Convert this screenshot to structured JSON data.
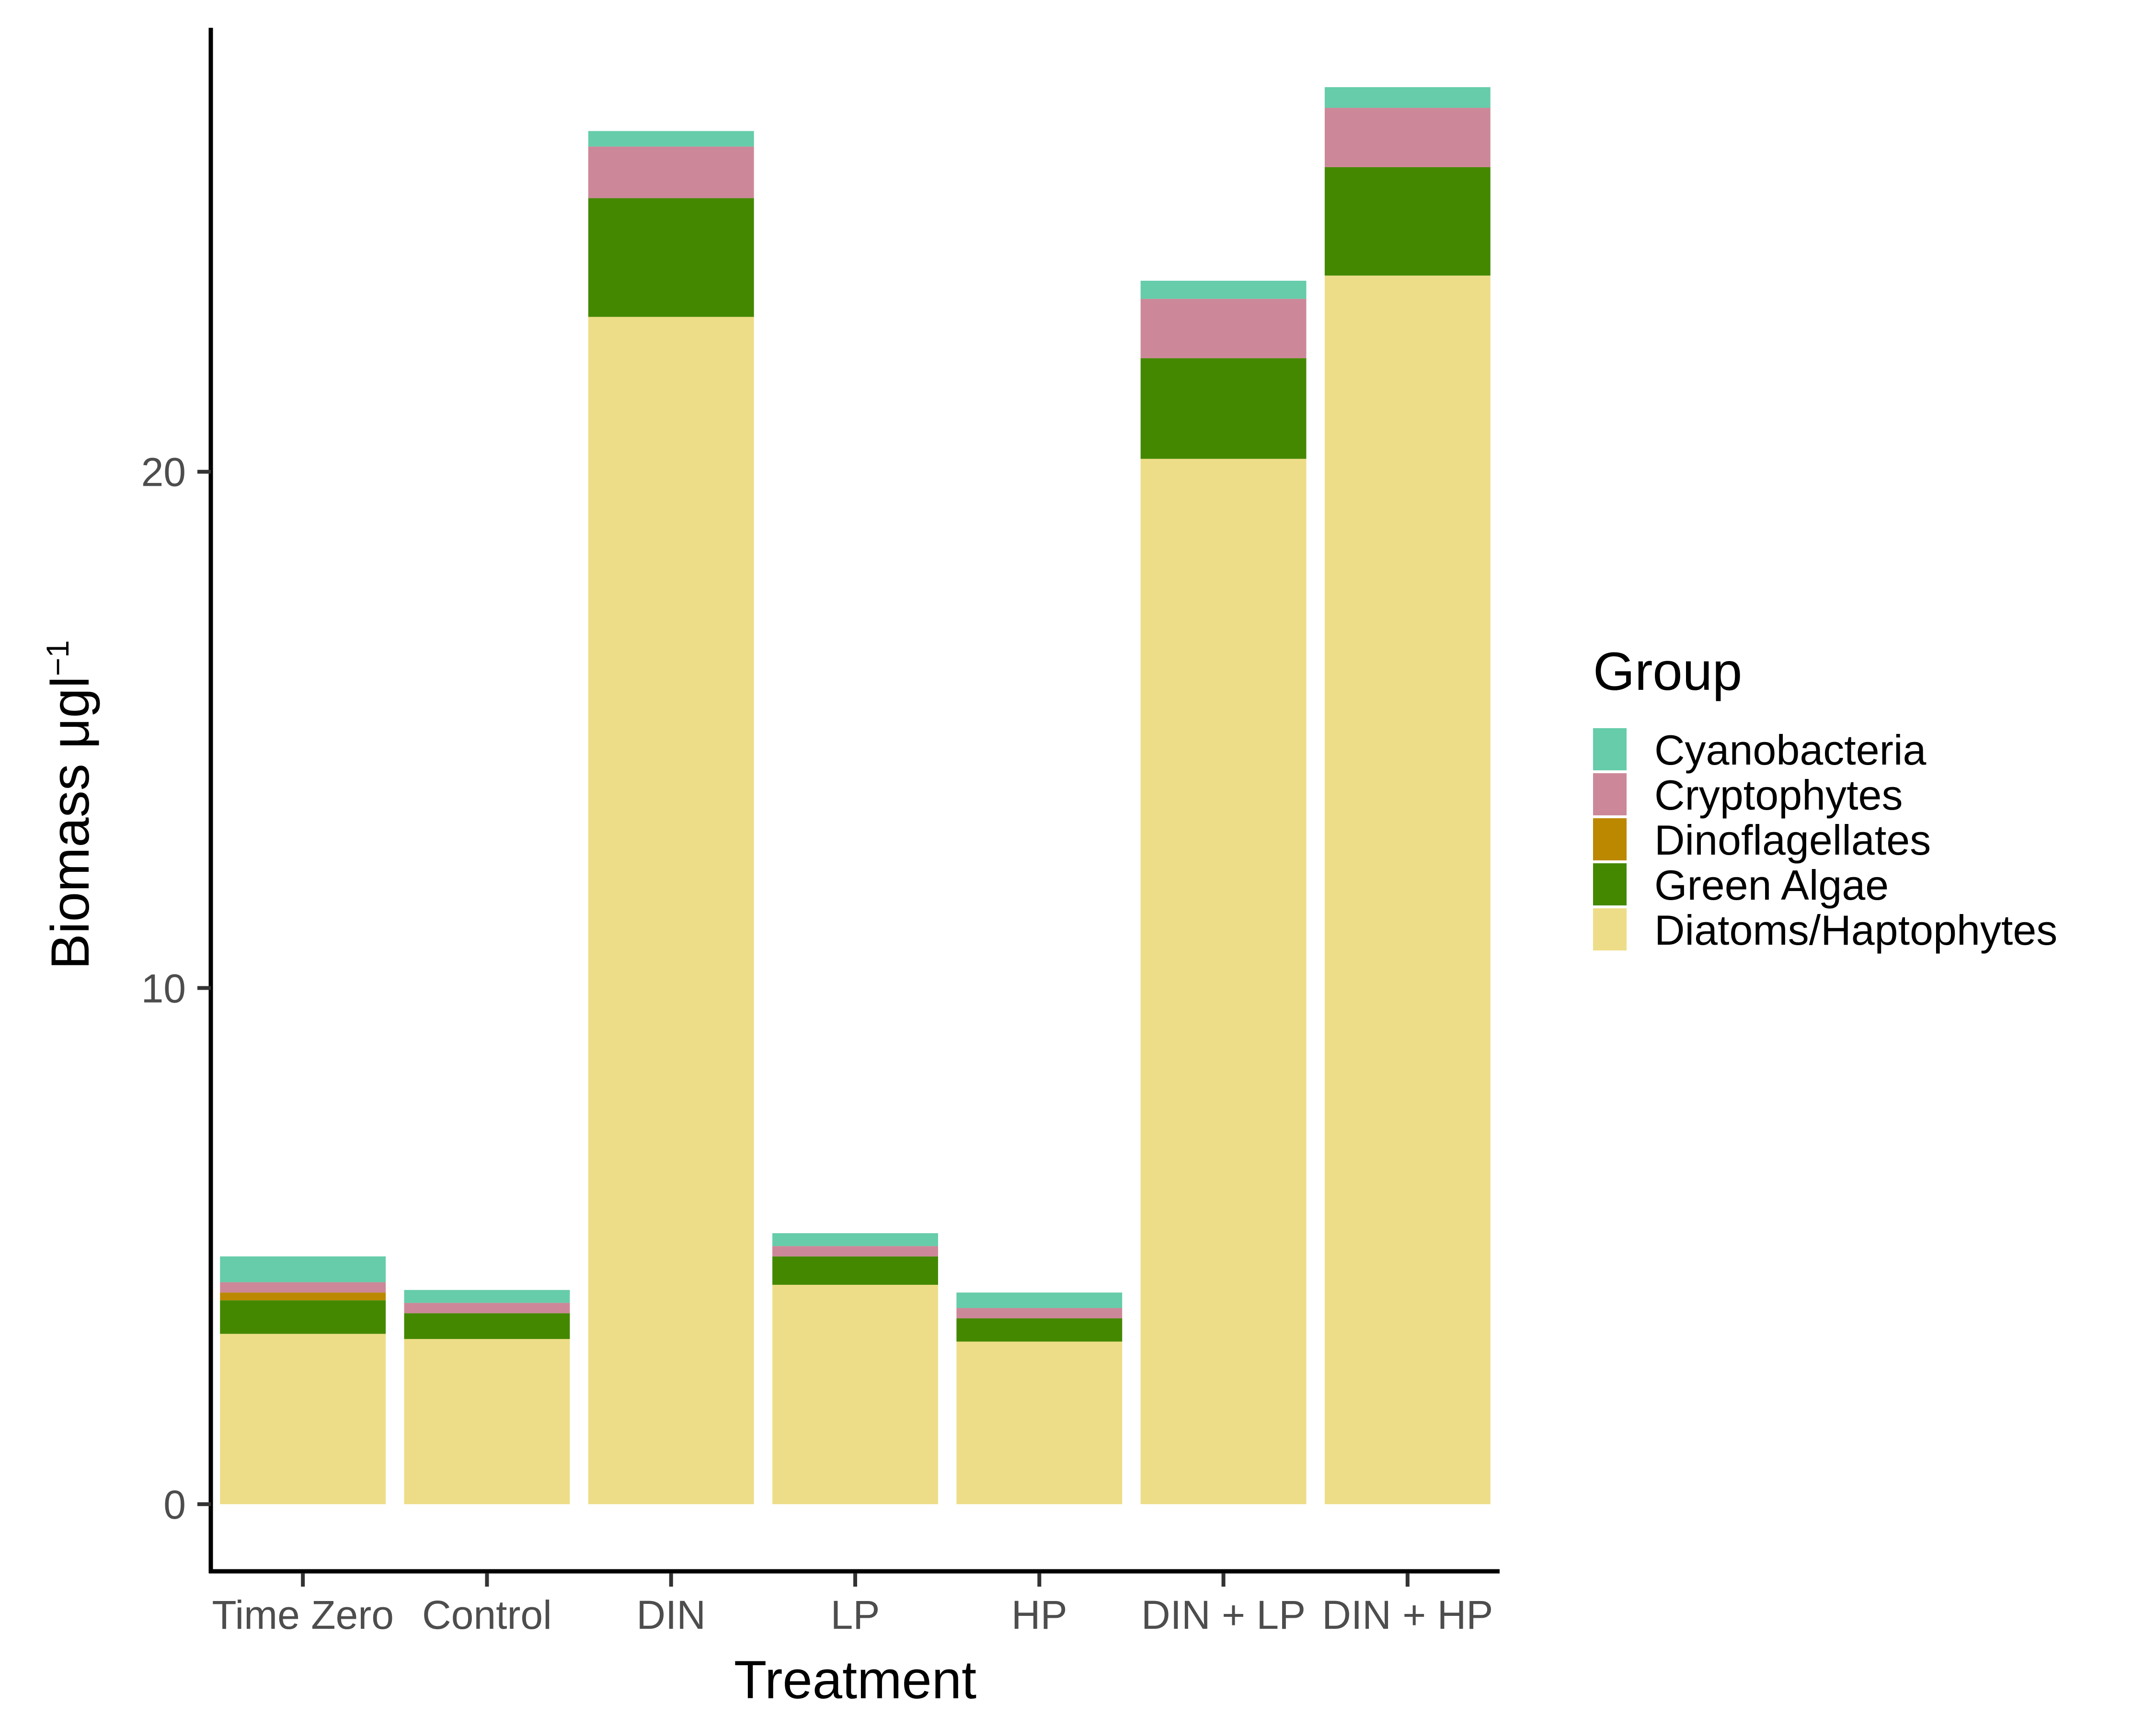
{
  "chart_data": {
    "type": "bar",
    "stacked": true,
    "xlabel": "Treatment",
    "ylabel": "Biomass μgl",
    "ylabel_superscript": "−1",
    "ylim": [
      -1.3,
      28.6
    ],
    "yticks": [
      0,
      10,
      20
    ],
    "grid": false,
    "legend_title": "Group",
    "legend_position": "right",
    "categories": [
      "Time Zero",
      "Control",
      "DIN",
      "LP",
      "HP",
      "DIN + LP",
      "DIN + HP"
    ],
    "series": [
      {
        "name": "Diatoms/Haptophytes",
        "color": "#EEDD88",
        "values": [
          3.3,
          3.2,
          23.0,
          4.25,
          3.15,
          20.25,
          23.8
        ]
      },
      {
        "name": "Green Algae",
        "color": "#448800",
        "values": [
          0.65,
          0.5,
          2.3,
          0.55,
          0.45,
          1.95,
          2.1
        ]
      },
      {
        "name": "Dinoflagellates",
        "color": "#BB8800",
        "values": [
          0.15,
          0.0,
          0.0,
          0.0,
          0.0,
          0.0,
          0.0
        ]
      },
      {
        "name": "Cryptophytes",
        "color": "#CC8899",
        "values": [
          0.2,
          0.2,
          1.0,
          0.2,
          0.2,
          1.15,
          1.15
        ]
      },
      {
        "name": "Cyanobacteria",
        "color": "#66CCAA",
        "values": [
          0.5,
          0.25,
          0.3,
          0.25,
          0.3,
          0.35,
          0.4
        ]
      }
    ],
    "legend_order": [
      "Cyanobacteria",
      "Cryptophytes",
      "Dinoflagellates",
      "Green Algae",
      "Diatoms/Haptophytes"
    ]
  }
}
